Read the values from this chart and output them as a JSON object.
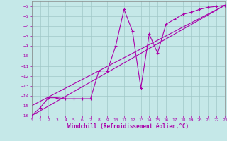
{
  "xlabel": "Windchill (Refroidissement éolien,°C)",
  "bg_color": "#c5e8e8",
  "grid_color": "#a0c8c8",
  "line_color": "#aa00aa",
  "xmin": 0,
  "xmax": 23,
  "ymin": -16,
  "ymax": -4.5,
  "line1_x": [
    0,
    1,
    2,
    3,
    4,
    5,
    6,
    7,
    8,
    9,
    10,
    11,
    12,
    13,
    14,
    15,
    16,
    17,
    18,
    19,
    20,
    21,
    22,
    23
  ],
  "line1_y": [
    -16.0,
    -15.2,
    -14.2,
    -14.2,
    -14.3,
    -14.3,
    -14.3,
    -14.3,
    -11.5,
    -11.5,
    -9.0,
    -5.3,
    -7.5,
    -13.2,
    -7.8,
    -9.7,
    -6.8,
    -6.3,
    -5.8,
    -5.6,
    -5.3,
    -5.1,
    -5.0,
    -4.9
  ],
  "line2_x": [
    0,
    23
  ],
  "line2_y": [
    -16.0,
    -4.9
  ],
  "line3_x": [
    0,
    23
  ],
  "line3_y": [
    -15.0,
    -4.9
  ],
  "tick_fontsize": 4.5,
  "label_fontsize": 5.5
}
